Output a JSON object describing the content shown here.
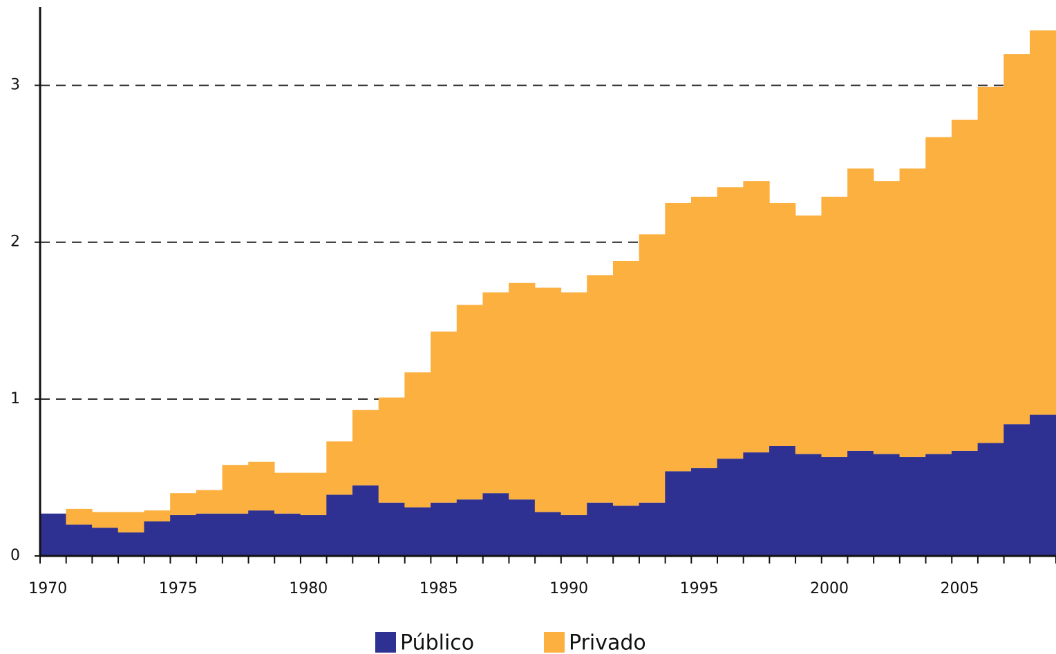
{
  "chart_data": {
    "type": "stacked_bar_step",
    "categories": [
      "1970",
      null,
      null,
      null,
      null,
      "1975",
      null,
      null,
      null,
      null,
      "1980",
      null,
      null,
      null,
      null,
      "1985",
      null,
      null,
      null,
      null,
      "1990",
      null,
      null,
      null,
      null,
      "1995",
      null,
      null,
      null,
      null,
      "2000",
      null,
      null,
      null,
      null,
      "2005",
      null,
      null,
      null
    ],
    "series": [
      {
        "name": "Público",
        "color": "#2e3192",
        "values": [
          0.27,
          0.2,
          0.18,
          0.15,
          0.22,
          0.26,
          0.27,
          0.27,
          0.29,
          0.27,
          0.26,
          0.39,
          0.45,
          0.34,
          0.31,
          0.34,
          0.36,
          0.4,
          0.36,
          0.28,
          0.26,
          0.34,
          0.32,
          0.34,
          0.54,
          0.56,
          0.62,
          0.66,
          0.7,
          0.65,
          0.63,
          0.67,
          0.65,
          0.63,
          0.65,
          0.67,
          0.72,
          0.84,
          0.9
        ]
      },
      {
        "name": "Privado",
        "color": "#fbb040",
        "values": [
          0,
          0.1,
          0.1,
          0.13,
          0.07,
          0.14,
          0.15,
          0.31,
          0.31,
          0.26,
          0.27,
          0.34,
          0.48,
          0.67,
          0.86,
          1.09,
          1.24,
          1.28,
          1.38,
          1.43,
          1.42,
          1.45,
          1.56,
          1.71,
          1.71,
          1.73,
          1.73,
          1.73,
          1.55,
          1.52,
          1.66,
          1.8,
          1.74,
          1.84,
          2.02,
          2.11,
          2.27,
          2.36,
          2.45
        ]
      }
    ],
    "ylim": [
      0,
      3.5
    ],
    "yticks": [
      0,
      1,
      2,
      3
    ],
    "grid": true
  }
}
